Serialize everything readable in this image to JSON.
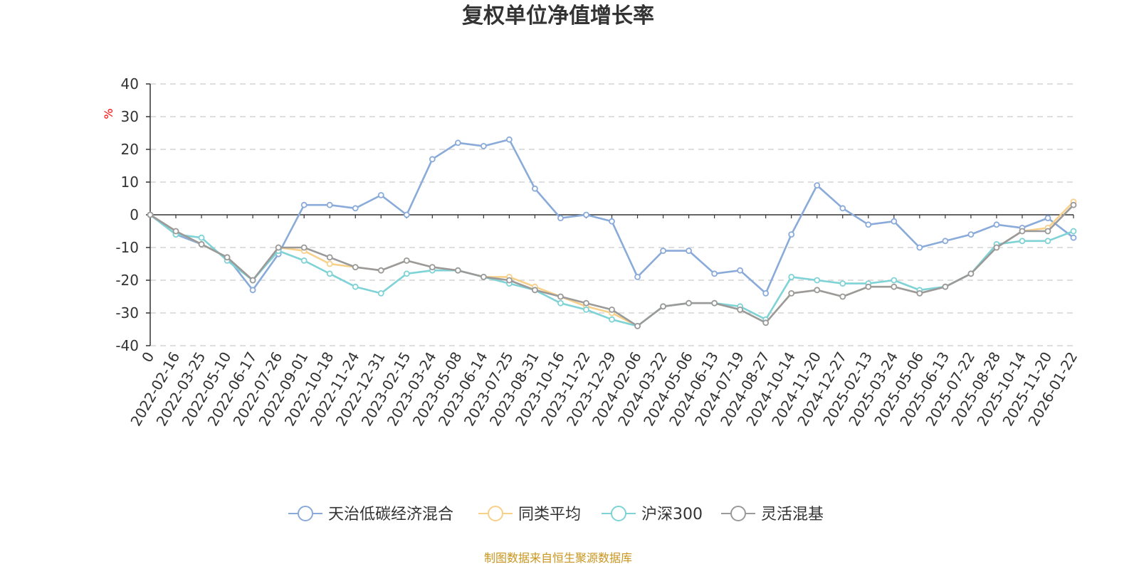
{
  "chart_data": {
    "type": "line",
    "title": "复权单位净值增长率",
    "ylabel": "%",
    "ylim": [
      -40,
      40
    ],
    "yticks": [
      40,
      30,
      20,
      10,
      0,
      -10,
      -20,
      -30,
      -40
    ],
    "grid": true,
    "legend_position": "bottom",
    "x": [
      "0",
      "2022-02-16",
      "2022-03-25",
      "2022-05-10",
      "2022-06-17",
      "2022-07-26",
      "2022-09-01",
      "2022-10-18",
      "2022-11-24",
      "2022-12-31",
      "2023-02-15",
      "2023-03-24",
      "2023-05-08",
      "2023-06-14",
      "2023-07-25",
      "2023-08-31",
      "2023-10-16",
      "2023-11-22",
      "2023-12-29",
      "2024-02-06",
      "2024-03-22",
      "2024-05-06",
      "2024-06-13",
      "2024-07-19",
      "2024-08-27",
      "2024-10-14",
      "2024-11-20",
      "2024-12-27",
      "2025-02-13",
      "2025-03-24",
      "2025-05-06",
      "2025-06-13",
      "2025-07-22",
      "2025-08-28",
      "2025-10-14",
      "2025-11-20",
      "2026-01-22"
    ],
    "series": [
      {
        "name": "天治低碳经济混合",
        "color": "#8aabd9",
        "values": [
          0,
          -6,
          -9,
          -13,
          -23,
          -12,
          3,
          3,
          2,
          6,
          0,
          17,
          22,
          21,
          23,
          8,
          -1,
          0,
          -2,
          -19,
          -11,
          -11,
          -18,
          -17,
          -24,
          -6,
          9,
          2,
          -3,
          -2,
          -10,
          -8,
          -6,
          -3,
          -4,
          -1,
          -7
        ]
      },
      {
        "name": "同类平均",
        "color": "#f7d08a",
        "values": [
          0,
          -5,
          -9,
          -13,
          -20,
          -10,
          -11,
          -15,
          -16,
          -17,
          -14,
          -16,
          -17,
          -19,
          -19,
          -22,
          -25,
          -28,
          -30,
          -34,
          -28,
          -27,
          -27,
          -29,
          -33,
          -24,
          -23,
          -25,
          -22,
          -22,
          -24,
          -22,
          -18,
          -10,
          -5,
          -4,
          4
        ]
      },
      {
        "name": "沪深300",
        "color": "#7fd3d6",
        "values": [
          0,
          -6,
          -7,
          -14,
          -20,
          -11,
          -14,
          -18,
          -22,
          -24,
          -18,
          -17,
          -17,
          -19,
          -21,
          -23,
          -27,
          -29,
          -32,
          -34,
          -28,
          -27,
          -27,
          -28,
          -32,
          -19,
          -20,
          -21,
          -21,
          -20,
          -23,
          -22,
          -18,
          -9,
          -8,
          -8,
          -5
        ]
      },
      {
        "name": "灵活混基",
        "color": "#9a9a9a",
        "values": [
          0,
          -5,
          -9,
          -13,
          -20,
          -10,
          -10,
          -13,
          -16,
          -17,
          -14,
          -16,
          -17,
          -19,
          -20,
          -23,
          -25,
          -27,
          -29,
          -34,
          -28,
          -27,
          -27,
          -29,
          -33,
          -24,
          -23,
          -25,
          -22,
          -22,
          -24,
          -22,
          -18,
          -10,
          -5,
          -5,
          3
        ]
      }
    ]
  },
  "footer": {
    "source": "制图数据来自恒生聚源数据库"
  }
}
